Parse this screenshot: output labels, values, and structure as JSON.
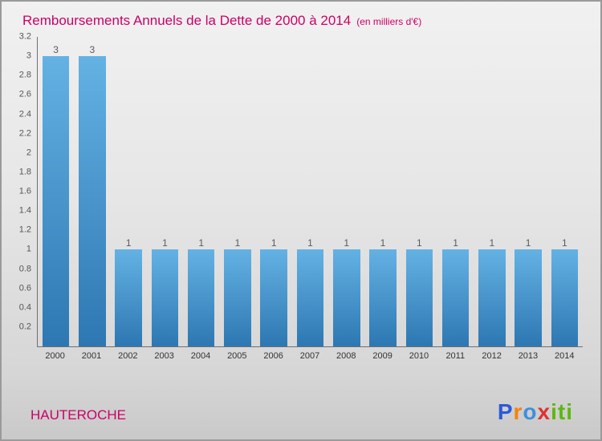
{
  "colors": {
    "accent": "#cc0066",
    "axis": "#707070",
    "tick_text": "#555555",
    "bar_top": "#64b2e4",
    "bar_bottom": "#2d77b2"
  },
  "header": {
    "title": "Remboursements Annuels de la Dette de 2000 à 2014",
    "subtitle": "(en milliers d'€)"
  },
  "chart_data": {
    "type": "bar",
    "title": "Remboursements Annuels de la Dette de 2000 à 2014",
    "subtitle": "(en milliers d'€)",
    "categories": [
      "2000",
      "2001",
      "2002",
      "2003",
      "2004",
      "2005",
      "2006",
      "2007",
      "2008",
      "2009",
      "2010",
      "2011",
      "2012",
      "2013",
      "2014"
    ],
    "values": [
      3,
      3,
      1,
      1,
      1,
      1,
      1,
      1,
      1,
      1,
      1,
      1,
      1,
      1,
      1
    ],
    "xlabel": "",
    "ylabel": "",
    "ylim": [
      0,
      3.2
    ],
    "ytick_step": 0.2,
    "grid": false,
    "legend": false,
    "value_labels_shown": true
  },
  "footer": {
    "org": "HAUTEROCHE",
    "logo_letters": [
      {
        "ch": "P",
        "color": "#2b59d8"
      },
      {
        "ch": "r",
        "color": "#f5820b"
      },
      {
        "ch": "o",
        "color": "#3f8fdd"
      },
      {
        "ch": "x",
        "color": "#e03131"
      },
      {
        "ch": "i",
        "color": "#5cb80f"
      },
      {
        "ch": "t",
        "color": "#5cb80f"
      },
      {
        "ch": "i",
        "color": "#5cb80f"
      }
    ]
  }
}
